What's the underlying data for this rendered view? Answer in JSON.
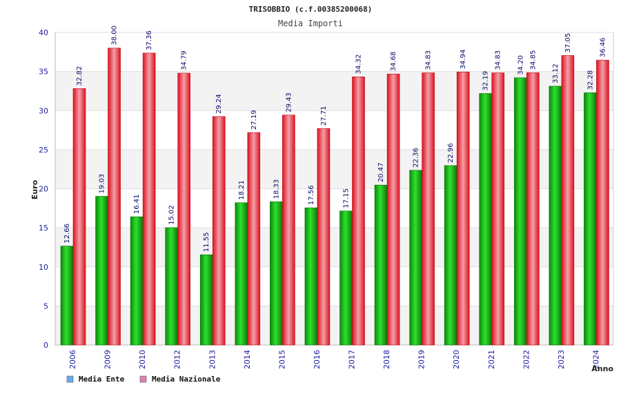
{
  "chart_data": {
    "type": "bar",
    "title": "TRISOBBIO (c.f.00385200068)",
    "subtitle": "Media Importi",
    "xlabel": "Anno",
    "ylabel": "Euro",
    "ylim": [
      0,
      40
    ],
    "yticks": [
      0,
      5,
      10,
      15,
      20,
      25,
      30,
      35,
      40
    ],
    "grid": true,
    "legend_position": "bottom-left",
    "categories": [
      "2006",
      "2009",
      "2010",
      "2012",
      "2013",
      "2014",
      "2015",
      "2016",
      "2017",
      "2018",
      "2019",
      "2020",
      "2021",
      "2022",
      "2023",
      "2024"
    ],
    "series": [
      {
        "name": "Media Ente",
        "color": "#1ec81e",
        "legend_color": "#6aaaf0",
        "values": [
          12.66,
          19.03,
          16.41,
          15.02,
          11.55,
          18.21,
          18.33,
          17.56,
          17.15,
          20.47,
          22.36,
          22.96,
          32.19,
          34.2,
          33.12,
          32.28
        ]
      },
      {
        "name": "Media Nazionale",
        "color": "#e8283a",
        "legend_color": "#e080b0",
        "values": [
          32.82,
          38.0,
          37.36,
          34.79,
          29.24,
          27.19,
          29.43,
          27.71,
          34.32,
          34.68,
          34.83,
          34.94,
          34.83,
          34.85,
          37.05,
          36.46
        ]
      }
    ]
  }
}
